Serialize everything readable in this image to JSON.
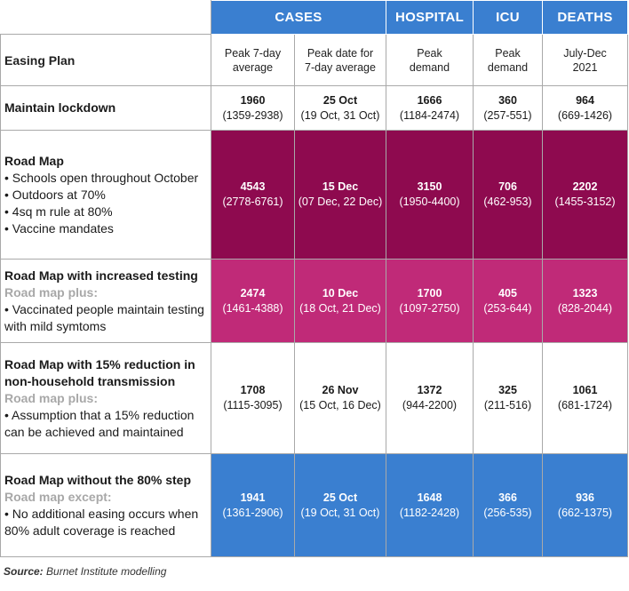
{
  "colors": {
    "blue": "#3a7fd0",
    "maroon": "#8e0a4f",
    "pink": "#c02a78"
  },
  "header_groups": [
    "CASES",
    "HOSPITAL",
    "ICU",
    "DEATHS"
  ],
  "subheader": {
    "plan_label": "Easing Plan",
    "cols": [
      {
        "l1": "Peak 7-day",
        "l2": "average"
      },
      {
        "l1": "Peak date for",
        "l2": "7-day average"
      },
      {
        "l1": "Peak",
        "l2": "demand"
      },
      {
        "l1": "Peak",
        "l2": "demand"
      },
      {
        "l1": "July-Dec",
        "l2": "2021"
      }
    ]
  },
  "rows": [
    {
      "title": "Maintain lockdown",
      "values": [
        {
          "main": "1960",
          "range": "(1359-2938)"
        },
        {
          "main": "25 Oct",
          "range": "(19 Oct, 31 Oct)"
        },
        {
          "main": "1666",
          "range": "(1184-2474)"
        },
        {
          "main": "360",
          "range": "(257-551)"
        },
        {
          "main": "964",
          "range": "(669-1426)"
        }
      ]
    },
    {
      "title": "Road Map",
      "bullets": [
        "• Schools open throughout October",
        "• Outdoors at 70%",
        "• 4sq m rule at 80%",
        "• Vaccine mandates"
      ],
      "values": [
        {
          "main": "4543",
          "range": "(2778-6761)"
        },
        {
          "main": "15 Dec",
          "range": "(07 Dec, 22 Dec)"
        },
        {
          "main": "3150",
          "range": "(1950-4400)"
        },
        {
          "main": "706",
          "range": "(462-953)"
        },
        {
          "main": "2202",
          "range": "(1455-3152)"
        }
      ]
    },
    {
      "title": "Road Map with increased testing",
      "subtitle": "Road map plus:",
      "bullets": [
        "• Vaccinated people maintain testing with mild symtoms"
      ],
      "values": [
        {
          "main": "2474",
          "range": "(1461-4388)"
        },
        {
          "main": "10 Dec",
          "range": "(18 Oct, 21 Dec)"
        },
        {
          "main": "1700",
          "range": "(1097-2750)"
        },
        {
          "main": "405",
          "range": "(253-644)"
        },
        {
          "main": "1323",
          "range": "(828-2044)"
        }
      ]
    },
    {
      "title": "Road Map with 15% reduction in non-household transmission",
      "subtitle": "Road map plus:",
      "bullets": [
        "• Assumption that a 15% reduction can be achieved and maintained"
      ],
      "values": [
        {
          "main": "1708",
          "range": "(1115-3095)"
        },
        {
          "main": "26 Nov",
          "range": "(15 Oct, 16 Dec)"
        },
        {
          "main": "1372",
          "range": "(944-2200)"
        },
        {
          "main": "325",
          "range": "(211-516)"
        },
        {
          "main": "1061",
          "range": "(681-1724)"
        }
      ]
    },
    {
      "title": "Road Map without the 80% step",
      "subtitle": "Road map except:",
      "bullets": [
        "• No additional easing occurs when 80% adult coverage is reached"
      ],
      "values": [
        {
          "main": "1941",
          "range": "(1361-2906)"
        },
        {
          "main": "25 Oct",
          "range": "(19 Oct, 31 Oct)"
        },
        {
          "main": "1648",
          "range": "(1182-2428)"
        },
        {
          "main": "366",
          "range": "(256-535)"
        },
        {
          "main": "936",
          "range": "(662-1375)"
        }
      ]
    }
  ],
  "source": {
    "label": "Source:",
    "text": " Burnet Institute modelling"
  }
}
